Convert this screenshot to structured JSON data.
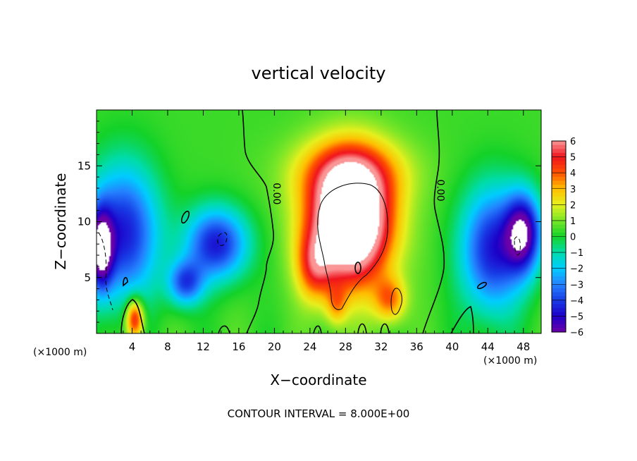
{
  "chart_data": {
    "type": "heatmap",
    "title": "vertical velocity",
    "xlabel": "X−coordinate",
    "ylabel": "Z−coordinate",
    "x_unit_label_left": "(×1000 m)",
    "x_unit_label_right": "(×1000 m)",
    "footer": "CONTOUR INTERVAL = 8.000E+00",
    "xlim": [
      0,
      50
    ],
    "ylim": [
      0,
      20
    ],
    "x_ticks": [
      4,
      8,
      12,
      16,
      20,
      24,
      28,
      32,
      36,
      40,
      44,
      48
    ],
    "x_tick_labels": [
      "4",
      "8",
      "12",
      "16",
      "20",
      "24",
      "28",
      "32",
      "36",
      "40",
      "44",
      "48"
    ],
    "y_ticks": [
      5,
      10,
      15
    ],
    "y_tick_labels": [
      "5",
      "10",
      "15"
    ],
    "colorbar": {
      "min": -6,
      "max": 6,
      "ticks": [
        6,
        5,
        4,
        3,
        2,
        1,
        0,
        -1,
        -2,
        -3,
        -4,
        -5,
        -6
      ],
      "tick_labels": [
        "6",
        "5",
        "4",
        "3",
        "2",
        "1",
        "0",
        "−1",
        "−2",
        "−3",
        "−4",
        "−5",
        "−6"
      ]
    },
    "contour_labels": [
      {
        "text": "0.00",
        "x": 19.5,
        "z": 12.5,
        "rotation": 90
      },
      {
        "text": "0.00",
        "x": 37.9,
        "z": 12.8,
        "rotation": 90
      }
    ],
    "field_features": [
      {
        "kind": "updraft",
        "x": 28.5,
        "z": 10.0,
        "sx": 4.6,
        "sz": 5.5,
        "amp": 10.0
      },
      {
        "kind": "updraft",
        "x": 24.5,
        "z": 6.0,
        "sx": 2.0,
        "sz": 3.0,
        "amp": 3.0
      },
      {
        "kind": "updraft",
        "x": 33.0,
        "z": 3.0,
        "sx": 1.8,
        "sz": 2.0,
        "amp": 3.0
      },
      {
        "kind": "updraft",
        "x": 27.0,
        "z": 2.5,
        "sx": 1.2,
        "sz": 1.8,
        "amp": 2.0
      },
      {
        "kind": "updraft",
        "x": 4.3,
        "z": 1.3,
        "sx": 1.0,
        "sz": 1.8,
        "amp": 5.0
      },
      {
        "kind": "downdraft",
        "x": 3.0,
        "z": 9.0,
        "sx": 4.0,
        "sz": 6.0,
        "amp": -5.0
      },
      {
        "kind": "downdraft",
        "x": 0.5,
        "z": 7.5,
        "sx": 1.3,
        "sz": 3.5,
        "amp": -6.0
      },
      {
        "kind": "downdraft",
        "x": 13.5,
        "z": 8.0,
        "sx": 3.5,
        "sz": 3.2,
        "amp": -5.0
      },
      {
        "kind": "downdraft",
        "x": 10.0,
        "z": 4.5,
        "sx": 2.0,
        "sz": 2.0,
        "amp": -4.0
      },
      {
        "kind": "downdraft",
        "x": 44.5,
        "z": 7.5,
        "sx": 3.5,
        "sz": 5.5,
        "amp": -5.0
      },
      {
        "kind": "downdraft",
        "x": 48.0,
        "z": 9.0,
        "sx": 2.0,
        "sz": 3.5,
        "amp": -6.0
      }
    ],
    "grid": false,
    "legend": "colorbar right"
  }
}
